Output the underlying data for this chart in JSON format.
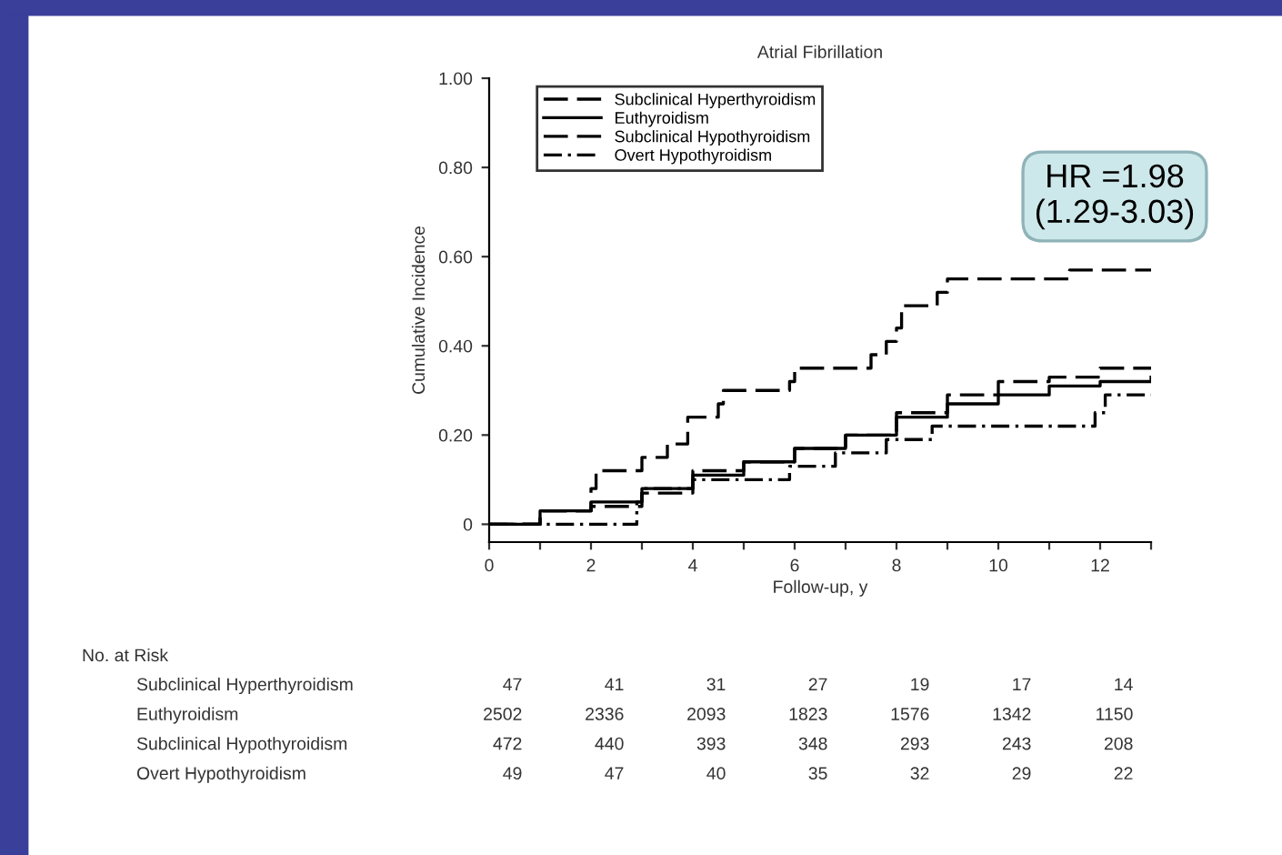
{
  "chart_data": [
    {
      "type": "step",
      "title": "Atrial Fibrillation",
      "xlabel": "Follow-up, y",
      "ylabel": "Cumulative Incidence",
      "xlim": [
        0,
        13
      ],
      "xticks": [
        0,
        {
          "value": 1,
          "label": null
        },
        2,
        {
          "value": 3,
          "label": null
        },
        4,
        {
          "value": 5,
          "label": null
        },
        6,
        {
          "value": 7,
          "label": null
        },
        8,
        {
          "value": 9,
          "label": null
        },
        10,
        {
          "value": 11,
          "label": null
        },
        12,
        {
          "value": 13,
          "label": null
        }
      ],
      "ylim": [
        -0.04,
        1.0
      ],
      "yticks": [
        0,
        {
          "value": 0.2,
          "label": "0.20"
        },
        {
          "value": 0.4,
          "label": "0.40"
        },
        {
          "value": 0.6,
          "label": "0.60"
        },
        {
          "value": 0.8,
          "label": "0.80"
        },
        {
          "value": 1.0,
          "label": "1.00"
        }
      ],
      "grid": false,
      "legend": "top left",
      "series": [
        {
          "name": "Subclinical Hyperthyroidism",
          "color": "#000000",
          "line_style": "dashed",
          "x": [
            0,
            1,
            2,
            2.1,
            3,
            3.5,
            3.9,
            4.5,
            4.6,
            5.9,
            6,
            7.5,
            7.8,
            8,
            8.1,
            8.8,
            9,
            11.4,
            13
          ],
          "values": [
            0,
            0.03,
            0.08,
            0.12,
            0.15,
            0.18,
            0.24,
            0.27,
            0.3,
            0.32,
            0.35,
            0.38,
            0.41,
            0.44,
            0.49,
            0.52,
            0.55,
            0.57,
            0.57
          ]
        },
        {
          "name": "Euthyroidism",
          "color": "#000000",
          "line_style": "solid",
          "x": [
            0,
            1,
            2,
            3,
            4,
            5,
            6,
            7,
            8,
            9,
            10,
            11,
            12,
            13
          ],
          "values": [
            0,
            0.03,
            0.05,
            0.08,
            0.11,
            0.14,
            0.17,
            0.2,
            0.24,
            0.27,
            0.29,
            0.31,
            0.32,
            0.33
          ]
        },
        {
          "name": "Subclinical Hypothyroidism",
          "color": "#000000",
          "line_style": "dashed",
          "x": [
            0,
            1,
            2,
            3,
            4,
            5,
            6,
            7,
            8,
            9,
            10,
            11,
            12,
            13
          ],
          "values": [
            0,
            0.03,
            0.04,
            0.07,
            0.12,
            0.14,
            0.17,
            0.2,
            0.25,
            0.29,
            0.32,
            0.33,
            0.35,
            0.35
          ]
        },
        {
          "name": "Overt Hypothyroidism",
          "color": "#000000",
          "line_style": "dashdot",
          "x": [
            0,
            2.9,
            3.0,
            3.5,
            4,
            5.9,
            6.8,
            7.8,
            8.7,
            11.9,
            12.1,
            13
          ],
          "values": [
            0,
            0.05,
            0.08,
            0.08,
            0.1,
            0.13,
            0.16,
            0.19,
            0.22,
            0.25,
            0.29,
            0.29
          ]
        }
      ],
      "annotations": [
        "HR =1.98\n(1.29-3.03)"
      ]
    },
    {
      "type": "other",
      "title": "No. at Risk",
      "y_categories": [
        "Subclinical Hyperthyroidism",
        "Euthyroidism",
        "Subclinical Hypothyroidism",
        "Overt Hypothyroidism"
      ],
      "cell_labels": [
        [
          "47",
          "41",
          "31",
          "27",
          "19",
          "17",
          "14"
        ],
        [
          "2502",
          "2336",
          "2093",
          "1823",
          "1576",
          "1342",
          "1150"
        ],
        [
          "472",
          "440",
          "393",
          "348",
          "293",
          "243",
          "208"
        ],
        [
          "49",
          "47",
          "40",
          "35",
          "32",
          "29",
          "22"
        ]
      ]
    }
  ]
}
